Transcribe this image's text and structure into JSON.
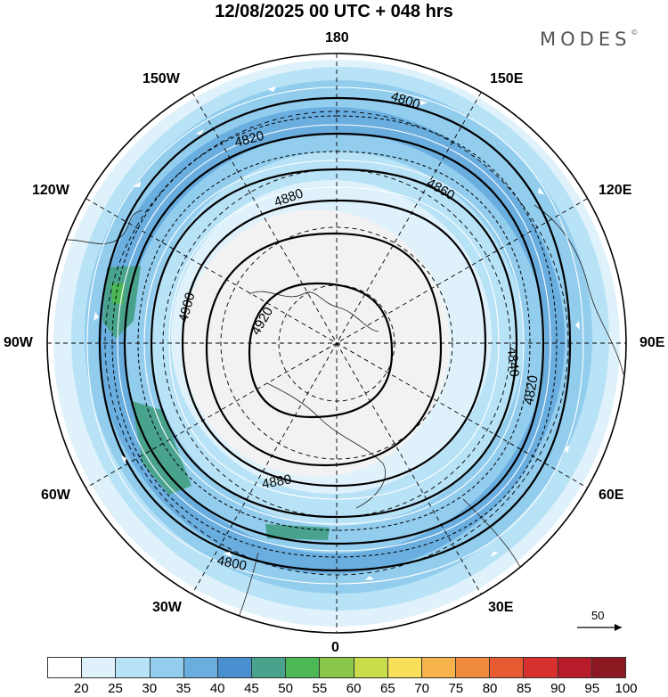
{
  "title": "12/08/2025  00 UTC  + 048 hrs",
  "brand": {
    "name": "MODES",
    "mark": "©"
  },
  "longitude_labels": {
    "top": "180",
    "bottom": "0",
    "left": "90W",
    "right": "90E",
    "upper_left_1": "150W",
    "upper_left_2": "120W",
    "upper_right_1": "150E",
    "upper_right_2": "120E",
    "lower_left_1": "60W",
    "lower_left_2": "30W",
    "lower_right_1": "60E",
    "lower_right_2": "30E"
  },
  "contour_labels": [
    "4800",
    "4820",
    "4840",
    "4860",
    "4880",
    "4900",
    "4920"
  ],
  "reference_vector": {
    "label": "50"
  },
  "colorbar": {
    "ticks": [
      "20",
      "25",
      "30",
      "35",
      "40",
      "45",
      "50",
      "55",
      "60",
      "65",
      "70",
      "75",
      "80",
      "85",
      "90",
      "95",
      "100"
    ],
    "colors": [
      "#ffffff",
      "#dff2fb",
      "#b8e2f6",
      "#92cdee",
      "#6aaee0",
      "#4a8fcf",
      "#48a28c",
      "#4db856",
      "#8ac84c",
      "#c8dc4c",
      "#f9e05a",
      "#f7b34c",
      "#f08a3c",
      "#e85a32",
      "#d8302e",
      "#b81c2a",
      "#8c1822"
    ]
  },
  "colors": {
    "land_grey": "#f2f2f2",
    "ocean": "#ffffff",
    "contour": "#000000",
    "streamline": "#ffffff"
  }
}
